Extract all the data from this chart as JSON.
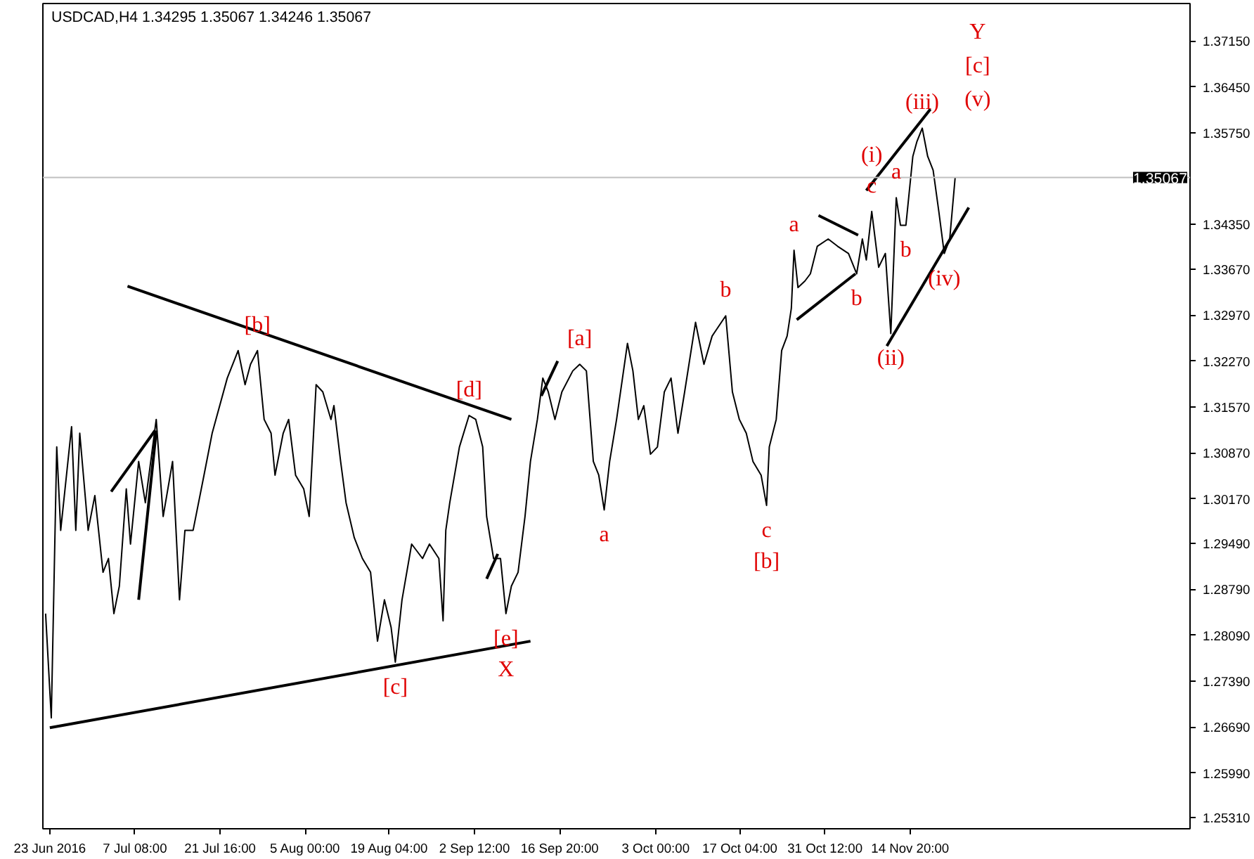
{
  "chart_data": {
    "type": "line",
    "title": "USDCAD,H4  1.34295 1.35067 1.34246 1.35067",
    "xlim": [
      "2016-06-21T20:00",
      "2016-12-31T23:00"
    ],
    "ylim": [
      1.2514,
      1.3772
    ],
    "xticks": [
      {
        "value": "2016-06-23T00:00",
        "label": "23 Jun 2016"
      },
      {
        "value": "2016-07-07T08:00",
        "label": "7 Jul 08:00"
      },
      {
        "value": "2016-07-21T16:00",
        "label": "21 Jul 16:00"
      },
      {
        "value": "2016-08-05T00:00",
        "label": "5 Aug 00:00"
      },
      {
        "value": "2016-08-19T04:00",
        "label": "19 Aug 04:00"
      },
      {
        "value": "2016-09-02T12:00",
        "label": "2 Sep 12:00"
      },
      {
        "value": "2016-09-16T20:00",
        "label": "16 Sep 20:00"
      },
      {
        "value": "2016-10-03T00:00",
        "label": "3 Oct 00:00"
      },
      {
        "value": "2016-10-17T04:00",
        "label": "17 Oct 04:00"
      },
      {
        "value": "2016-10-31T12:00",
        "label": "31 Oct 12:00"
      },
      {
        "value": "2016-11-14T20:00",
        "label": "14 Nov 20:00"
      }
    ],
    "yticks": [
      {
        "value": 1.3715,
        "label": "1.37150"
      },
      {
        "value": 1.3645,
        "label": "1.36450"
      },
      {
        "value": 1.3575,
        "label": "1.35750"
      },
      {
        "value": 1.3435,
        "label": "1.34350"
      },
      {
        "value": 1.3367,
        "label": "1.33670"
      },
      {
        "value": 1.3297,
        "label": "1.32970"
      },
      {
        "value": 1.3227,
        "label": "1.32270"
      },
      {
        "value": 1.3157,
        "label": "1.31570"
      },
      {
        "value": 1.3087,
        "label": "1.30870"
      },
      {
        "value": 1.3017,
        "label": "1.30170"
      },
      {
        "value": 1.2949,
        "label": "1.29490"
      },
      {
        "value": 1.2879,
        "label": "1.28790"
      },
      {
        "value": 1.2809,
        "label": "1.28090"
      },
      {
        "value": 1.2739,
        "label": "1.27390"
      },
      {
        "value": 1.2669,
        "label": "1.26690"
      },
      {
        "value": 1.2599,
        "label": "1.25990"
      },
      {
        "value": 1.2531,
        "label": "1.25310"
      }
    ],
    "series": [
      {
        "color": "#000000",
        "x": [
          "2016-06-22T07:00",
          "2016-06-23T06:00",
          "2016-06-24T04:00",
          "2016-06-24T20:00",
          "2016-06-26T16:00",
          "2016-06-27T09:00",
          "2016-06-28T01:00",
          "2016-06-29T11:00",
          "2016-06-30T14:00",
          "2016-07-01T23:00",
          "2016-07-02T21:00",
          "2016-07-03T19:00",
          "2016-07-04T17:00",
          "2016-07-05T21:00",
          "2016-07-06T14:00",
          "2016-07-07T23:00",
          "2016-07-09T02:00",
          "2016-07-10T22:00",
          "2016-07-12T02:00",
          "2016-07-13T16:00",
          "2016-07-14T20:00",
          "2016-07-15T18:00",
          "2016-07-17T03:00",
          "2016-07-18T23:00",
          "2016-07-20T08:00",
          "2016-07-22T21:00",
          "2016-07-24T17:00",
          "2016-07-25T21:00",
          "2016-07-26T19:00",
          "2016-07-27T23:00",
          "2016-07-29T02:00",
          "2016-07-30T06:00",
          "2016-07-30T22:00",
          "2016-08-01T07:00",
          "2016-08-02T05:00",
          "2016-08-03T09:00",
          "2016-08-04T18:00",
          "2016-08-05T16:00",
          "2016-08-06T20:00",
          "2016-08-07T23:00",
          "2016-08-09T08:00",
          "2016-08-09T20:00",
          "2016-08-10T23:00",
          "2016-08-11T21:00",
          "2016-08-13T06:00",
          "2016-08-14T15:00",
          "2016-08-16T00:00",
          "2016-08-17T04:00",
          "2016-08-18T08:00",
          "2016-08-19T11:00",
          "2016-08-20T04:00",
          "2016-08-21T07:00",
          "2016-08-22T22:00",
          "2016-08-24T18:00",
          "2016-08-25T22:00",
          "2016-08-27T12:00",
          "2016-08-28T05:00",
          "2016-08-28T16:00",
          "2016-08-29T08:00",
          "2016-08-30T23:00",
          "2016-09-01T14:00",
          "2016-09-02T17:00",
          "2016-09-03T21:00",
          "2016-09-04T13:00",
          "2016-09-05T17:00",
          "2016-09-06T21:00",
          "2016-09-07T19:00",
          "2016-09-08T17:00",
          "2016-09-09T20:00",
          "2016-09-11T00:00",
          "2016-09-11T22:00",
          "2016-09-13T02:00",
          "2016-09-14T00:00",
          "2016-09-14T22:00",
          "2016-09-16T01:00",
          "2016-09-17T05:00",
          "2016-09-19T01:00",
          "2016-09-20T05:00",
          "2016-09-21T08:00",
          "2016-09-22T12:00",
          "2016-09-23T10:00",
          "2016-09-24T08:00",
          "2016-09-25T06:00",
          "2016-09-26T10:00",
          "2016-09-28T06:00",
          "2016-09-29T04:00",
          "2016-09-30T02:00",
          "2016-10-01T00:00",
          "2016-10-02T03:00",
          "2016-10-03T07:00",
          "2016-10-04T11:00",
          "2016-10-05T14:00",
          "2016-10-06T18:00",
          "2016-10-07T21:00",
          "2016-10-09T17:00",
          "2016-10-11T03:00",
          "2016-10-12T12:00",
          "2016-10-14T19:00",
          "2016-10-15T22:00",
          "2016-10-17T02:00",
          "2016-10-18T06:00",
          "2016-10-19T09:00",
          "2016-10-20T18:00",
          "2016-10-21T16:00",
          "2016-10-22T03:00",
          "2016-10-23T07:00",
          "2016-10-24T05:00",
          "2016-10-25T03:00",
          "2016-10-25T20:00",
          "2016-10-26T07:00",
          "2016-10-26T23:00",
          "2016-10-28T03:00",
          "2016-10-29T01:00",
          "2016-10-30T05:00",
          "2016-11-01T01:00",
          "2016-11-02T15:00",
          "2016-11-04T11:00",
          "2016-11-05T20:00",
          "2016-11-06T19:00",
          "2016-11-07T11:00",
          "2016-11-08T09:00",
          "2016-11-09T13:00",
          "2016-11-10T16:00",
          "2016-11-11T14:00",
          "2016-11-12T12:00",
          "2016-11-13T05:00",
          "2016-11-14T03:00",
          "2016-11-15T07:00",
          "2016-11-15T23:00",
          "2016-11-16T21:00",
          "2016-11-17T19:00",
          "2016-11-18T17:00",
          "2016-11-19T16:00",
          "2016-11-20T14:00",
          "2016-11-21T12:00",
          "2016-11-22T10:00"
        ],
        "values": [
          1.2842,
          1.2683,
          1.3096,
          1.2969,
          1.3127,
          1.2969,
          1.3117,
          1.2969,
          1.3022,
          1.2905,
          1.2926,
          1.2842,
          1.2884,
          1.3032,
          1.2948,
          1.3074,
          1.3011,
          1.3138,
          1.299,
          1.3074,
          1.2863,
          1.2969,
          1.2969,
          1.3053,
          1.3117,
          1.3201,
          1.3243,
          1.3191,
          1.3222,
          1.3243,
          1.3138,
          1.3117,
          1.3053,
          1.3117,
          1.3138,
          1.3053,
          1.3032,
          1.299,
          1.3191,
          1.318,
          1.3138,
          1.3159,
          1.3074,
          1.3011,
          1.2958,
          1.2926,
          1.2905,
          1.28,
          1.2863,
          1.2821,
          1.2768,
          1.2863,
          1.2948,
          1.2926,
          1.2948,
          1.2926,
          1.2831,
          1.2969,
          1.3011,
          1.3096,
          1.3144,
          1.3138,
          1.3096,
          1.299,
          1.2926,
          1.2926,
          1.2842,
          1.2884,
          1.2905,
          1.299,
          1.3074,
          1.3138,
          1.3201,
          1.318,
          1.3138,
          1.318,
          1.3212,
          1.3222,
          1.3212,
          1.3074,
          1.3053,
          1.3,
          1.3074,
          1.3138,
          1.3254,
          1.3212,
          1.3138,
          1.3159,
          1.3085,
          1.3096,
          1.318,
          1.3201,
          1.3117,
          1.318,
          1.3286,
          1.3222,
          1.3265,
          1.3296,
          1.318,
          1.3138,
          1.3117,
          1.3074,
          1.3053,
          1.3007,
          1.3096,
          1.3138,
          1.3243,
          1.3265,
          1.3307,
          1.3396,
          1.3339,
          1.3349,
          1.336,
          1.3402,
          1.3413,
          1.3402,
          1.3391,
          1.336,
          1.3413,
          1.3381,
          1.3455,
          1.337,
          1.3391,
          1.3269,
          1.3476,
          1.3434,
          1.3434,
          1.3539,
          1.3561,
          1.3582,
          1.3539,
          1.3518,
          1.3455,
          1.3391,
          1.3413,
          1.3507
        ]
      },
      {
        "type": "line",
        "color": "#000000",
        "x": [
          "2016-07-06T02:00",
          "2016-09-08T17:00"
        ],
        "values": [
          1.3341,
          1.3138
        ]
      },
      {
        "type": "line",
        "color": "#000000",
        "x": [
          "2016-06-23T00:00",
          "2016-09-11T22:00"
        ],
        "values": [
          1.2668,
          1.28
        ]
      },
      {
        "type": "line",
        "color": "#000000",
        "x": [
          "2016-07-03T08:00",
          "2016-07-10T17:00"
        ],
        "values": [
          1.3028,
          1.3121
        ]
      },
      {
        "type": "line",
        "color": "#000000",
        "x": [
          "2016-07-07T23:00",
          "2016-07-10T22:00"
        ],
        "values": [
          1.2863,
          1.3121
        ]
      },
      {
        "type": "line",
        "color": "#000000",
        "x": [
          "2016-09-04T13:00",
          "2016-09-06T10:00"
        ],
        "values": [
          1.2895,
          1.2933
        ]
      },
      {
        "type": "line",
        "color": "#000000",
        "x": [
          "2016-09-13T18:00",
          "2016-09-16T12:00"
        ],
        "values": [
          1.3174,
          1.3227
        ]
      },
      {
        "type": "line",
        "color": "#000000",
        "x": [
          "2016-10-26T18:00",
          "2016-11-05T15:00"
        ],
        "values": [
          1.329,
          1.336
        ]
      },
      {
        "type": "line",
        "color": "#000000",
        "x": [
          "2016-10-30T10:00",
          "2016-11-06T02:00"
        ],
        "values": [
          1.3449,
          1.3419
        ]
      },
      {
        "type": "line",
        "color": "#000000",
        "x": [
          "2016-11-10T22:00",
          "2016-11-24T17:00"
        ],
        "values": [
          1.325,
          1.3461
        ]
      },
      {
        "type": "line",
        "color": "#000000",
        "x": [
          "2016-11-07T11:00",
          "2016-11-18T06:00"
        ],
        "values": [
          1.3487,
          1.3611
        ]
      }
    ],
    "ref_lines": [
      {
        "axis": "y",
        "value": 1.35067,
        "label": "1.35067",
        "color": "#c0c0c0"
      }
    ],
    "annotations": [
      "Y",
      "[c]",
      "(v)",
      {
        "text": "(iii)",
        "x": "2016-11-16T21:00",
        "y": 1.3582
      },
      {
        "text": "a",
        "x": "2016-11-12T12:00",
        "y": 1.3476
      },
      {
        "text": "c",
        "x": "2016-11-08T09:00",
        "y": 1.3455
      },
      {
        "text": "(i)",
        "x": "2016-11-08T09:00",
        "y": 1.3455
      },
      {
        "text": "a",
        "x": "2016-10-26T07:00",
        "y": 1.3396
      },
      {
        "text": "b",
        "x": "2016-11-05T20:00",
        "y": 1.336
      },
      {
        "text": "b",
        "x": "2016-11-14T03:00",
        "y": 1.3434
      },
      {
        "text": "(ii)",
        "x": "2016-11-11T14:00",
        "y": 1.3269
      },
      {
        "text": "(iv)",
        "x": "2016-11-20T14:00",
        "y": 1.3391
      },
      {
        "text": "b",
        "x": "2016-10-14T19:00",
        "y": 1.3296
      },
      {
        "text": "[a]",
        "x": "2016-09-20T05:00",
        "y": 1.3222
      },
      {
        "text": "[b]",
        "x": "2016-07-27T23:00",
        "y": 1.3243
      },
      {
        "text": "[d]",
        "x": "2016-09-01T14:00",
        "y": 1.3144
      },
      {
        "text": "a",
        "x": "2016-09-24T08:00",
        "y": 1.3
      },
      {
        "text": "c",
        "x": "2016-10-21T16:00",
        "y": 1.3007
      },
      {
        "text": "[b]",
        "x": "2016-10-21T16:00",
        "y": 1.3007
      },
      {
        "text": "[c]",
        "x": "2016-08-20T04:00",
        "y": 1.2768
      },
      {
        "text": "[e]",
        "x": "2016-09-07T19:00",
        "y": 1.2842
      },
      {
        "text": "X",
        "x": "2016-09-07T19:00",
        "y": 1.2842
      }
    ]
  }
}
